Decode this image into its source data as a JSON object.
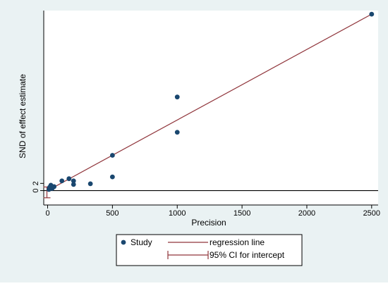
{
  "chart_data": {
    "type": "scatter",
    "xlabel": "Precision",
    "ylabel": "SND of effect estimate",
    "xlim": [
      -30,
      2550
    ],
    "ylim": [
      -4,
      50
    ],
    "x_ticks": [
      "0",
      "500",
      "1000",
      "1500",
      "2000",
      "2500"
    ],
    "x_tick_values": [
      0,
      500,
      1000,
      1500,
      2000,
      2500
    ],
    "y_tick_labels": [
      "0",
      "2"
    ],
    "grid": false,
    "legend_position": "bottom",
    "legend": {
      "study": "Study",
      "regression": "regression line",
      "ci": "95% CI for intercept"
    },
    "points": [
      {
        "x": 10,
        "y": 0.3
      },
      {
        "x": 15,
        "y": 0.9
      },
      {
        "x": 25,
        "y": 1.5
      },
      {
        "x": 35,
        "y": 0.6
      },
      {
        "x": 50,
        "y": 1.1
      },
      {
        "x": 110,
        "y": 2.7
      },
      {
        "x": 165,
        "y": 3.3
      },
      {
        "x": 200,
        "y": 1.7
      },
      {
        "x": 200,
        "y": 2.7
      },
      {
        "x": 330,
        "y": 1.9
      },
      {
        "x": 500,
        "y": 3.8
      },
      {
        "x": 500,
        "y": 9.8
      },
      {
        "x": 1000,
        "y": 16.2
      },
      {
        "x": 1000,
        "y": 26.0
      },
      {
        "x": 2500,
        "y": 49.0
      }
    ],
    "regression_line": {
      "intercept": 0.0,
      "slope": 0.0196
    },
    "ci_intercept": [
      -2.0,
      1.0
    ],
    "colors": {
      "point": "#1a476f",
      "regression": "#90353b",
      "axis": "#000000",
      "background": "#eaf2f3"
    }
  }
}
